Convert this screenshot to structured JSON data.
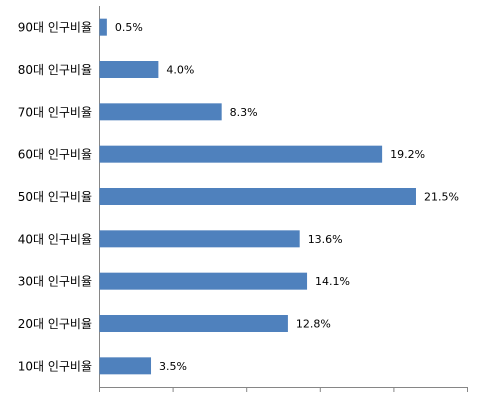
{
  "chart_data": {
    "type": "bar",
    "orientation": "horizontal",
    "categories": [
      "90대 인구비율",
      "80대 인구비율",
      "70대 인구비율",
      "60대 인구비율",
      "50대 인구비율",
      "40대 인구비율",
      "30대 인구비율",
      "20대 인구비율",
      "10대 인구비율"
    ],
    "values": [
      0.5,
      4.0,
      8.3,
      19.2,
      21.5,
      13.6,
      14.1,
      12.8,
      3.5
    ],
    "value_labels": [
      "0.5%",
      "4.0%",
      "8.3%",
      "19.2%",
      "21.5%",
      "13.6%",
      "14.1%",
      "12.8%",
      "3.5%"
    ],
    "color": "#4f81bd",
    "xlim": [
      0,
      25
    ],
    "xticks": [
      0,
      5,
      10,
      15,
      20,
      25
    ]
  }
}
